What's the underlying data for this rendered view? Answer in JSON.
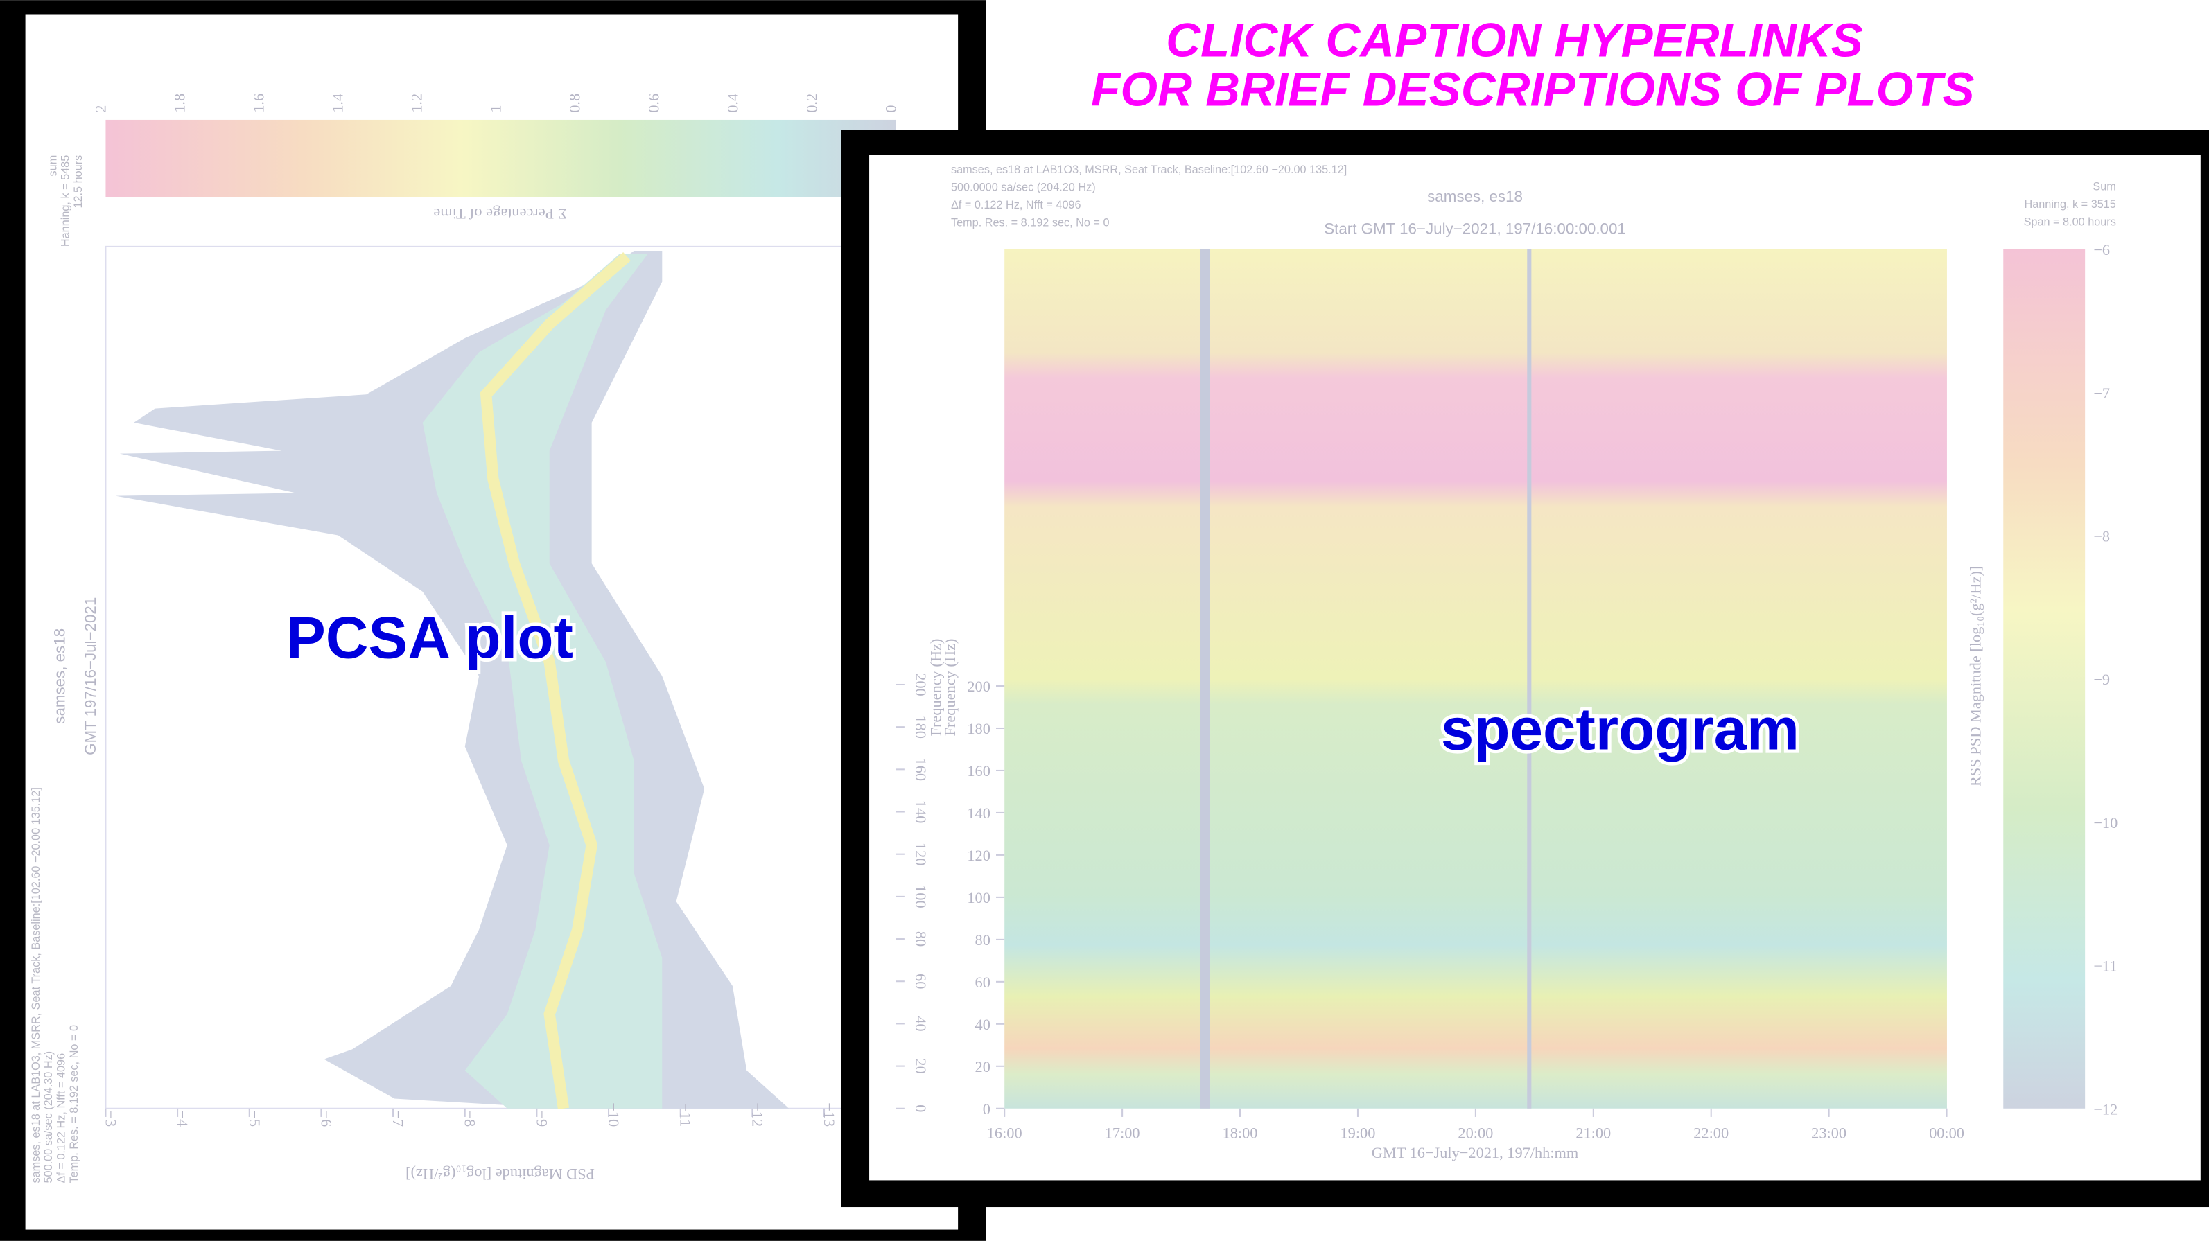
{
  "caption": {
    "lines": [
      "CLICK CAPTION HYPERLINKS",
      "FOR BRIEF DESCRIPTIONS OF PLOTS"
    ]
  },
  "pcsa": {
    "label": "PCSA plot",
    "title": "samses, es18",
    "subtitle": "GMT 197/16−Jul−2021",
    "info": [
      "samses, es18 at LAB1O3, MSRR, Seat Track, Baseline:[102.60 −20.00 135.12]",
      "500.00 sa/sec (204.30 Hz)",
      "Δf = 0.122 Hz, Nfft = 4096",
      "Temp. Res. = 8.192 sec, No = 0"
    ],
    "params": [
      "sum",
      "Hanning, k = 5485",
      "12.5 hours"
    ],
    "x_label": "PSD Magnitude [log₁₀(g²/Hz)]",
    "y_label": "Frequency (Hz)",
    "colorbar_label": "Σ Percentage of Time",
    "xticks": [
      "−3",
      "−4",
      "−5",
      "−6",
      "−7",
      "−8",
      "−9",
      "−10",
      "−11",
      "−12",
      "−13"
    ],
    "yticks": [
      "0",
      "20",
      "40",
      "60",
      "80",
      "100",
      "120",
      "140",
      "160",
      "180",
      "200"
    ],
    "colorbar_ticks": [
      "2",
      "1.8",
      "1.6",
      "1.4",
      "1.2",
      "1",
      "0.8",
      "0.6",
      "0.4",
      "0.2",
      "0"
    ]
  },
  "spectrogram": {
    "label": "spectrogram",
    "title": "samses, es18",
    "subtitle": "Start GMT 16−July−2021, 197/16:00:00.001",
    "info": [
      "samses, es18 at LAB1O3, MSRR, Seat Track, Baseline:[102.60 −20.00 135.12]",
      "500.0000 sa/sec (204.20 Hz)",
      "Δf = 0.122 Hz,  Nfft = 4096",
      "Temp. Res. = 8.192 sec, No = 0"
    ],
    "params": [
      "Sum",
      "Hanning, k = 3515",
      "Span = 8.00 hours"
    ],
    "x_label": "GMT 16−July−2021, 197/hh:mm",
    "y_label": "Frequency (Hz)",
    "colorbar_label": "RSS PSD Magnitude [log₁₀(g²/Hz)]",
    "xticks": [
      "16:00",
      "17:00",
      "18:00",
      "19:00",
      "20:00",
      "21:00",
      "22:00",
      "23:00",
      "00:00"
    ],
    "yticks": [
      "0",
      "20",
      "40",
      "60",
      "80",
      "100",
      "120",
      "140",
      "160",
      "180",
      "200"
    ],
    "colorbar_ticks": [
      "−6",
      "−7",
      "−8",
      "−9",
      "−10",
      "−11",
      "−12"
    ]
  }
}
